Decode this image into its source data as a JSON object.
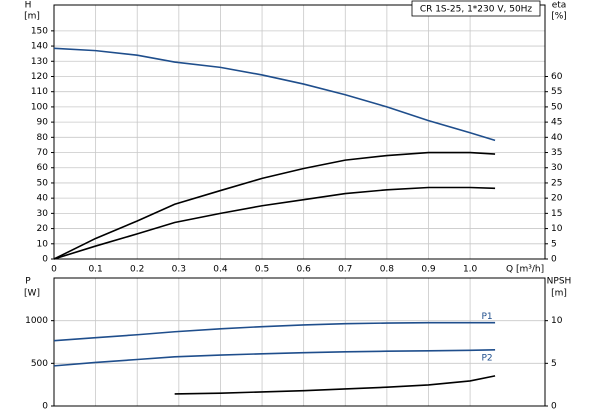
{
  "chart_data": [
    {
      "type": "line",
      "title": "CR 1S-25, 1*230 V, 50Hz",
      "y_label": "H",
      "y_unit": "[m]",
      "y2_label": "eta",
      "y2_unit": "[%]",
      "x_label": "Q [m³/h]",
      "x": [
        0,
        0.1,
        0.2,
        0.29,
        0.4,
        0.5,
        0.6,
        0.7,
        0.8,
        0.9,
        1.0,
        1.06
      ],
      "xlim": [
        0,
        1.18
      ],
      "xticks": [
        0,
        0.1,
        0.2,
        0.3,
        0.4,
        0.5,
        0.6,
        0.7,
        0.8,
        0.9,
        {
          "value": 1,
          "label": "1.0"
        }
      ],
      "ylim": [
        0,
        167
      ],
      "yticks": [
        0,
        10,
        20,
        30,
        40,
        50,
        60,
        70,
        80,
        90,
        100,
        110,
        120,
        130,
        140,
        150
      ],
      "y2lim": [
        0,
        83.5
      ],
      "y2ticks": [
        0,
        5,
        10,
        15,
        20,
        25,
        30,
        35,
        40,
        45,
        50,
        55,
        60
      ],
      "grid": true,
      "series": [
        {
          "color": "#1f4e8c",
          "values": [
            138.5,
            137,
            134,
            129.5,
            126,
            121,
            115,
            108,
            100,
            91,
            83,
            78
          ]
        },
        {
          "color": "#000000",
          "axis": "y2",
          "values": [
            0,
            6.75,
            12.5,
            18,
            22.5,
            26.5,
            29.75,
            32.5,
            34,
            35,
            35,
            34.5
          ]
        },
        {
          "color": "#000000",
          "axis": "y2",
          "values": [
            0,
            4.25,
            8.25,
            12,
            15,
            17.5,
            19.5,
            21.5,
            22.75,
            23.5,
            23.5,
            23.25
          ]
        }
      ]
    },
    {
      "type": "line",
      "y_label": "P",
      "y_unit": "[W]",
      "y2_label": "NPSH",
      "y2_unit": "[m]",
      "x": [
        0,
        0.1,
        0.2,
        0.29,
        0.4,
        0.5,
        0.6,
        0.7,
        0.8,
        0.9,
        1.0,
        1.06
      ],
      "xlim": [
        0,
        1.18
      ],
      "xticks": [
        0,
        0.1,
        0.2,
        0.3,
        0.4,
        0.5,
        0.6,
        0.7,
        0.8,
        0.9,
        1
      ],
      "ylim": [
        0,
        1500
      ],
      "yticks": [
        0,
        500,
        1000
      ],
      "y2lim": [
        0,
        15
      ],
      "y2ticks": [
        0,
        5,
        10
      ],
      "grid": true,
      "series": [
        {
          "name": "P1",
          "color": "#1f4e8c",
          "values": [
            765,
            800,
            835,
            870,
            905,
            930,
            950,
            965,
            972,
            976,
            976,
            976
          ]
        },
        {
          "name": "P2",
          "color": "#1f4e8c",
          "values": [
            470,
            510,
            545,
            576,
            597,
            612,
            625,
            635,
            642,
            647,
            653,
            659
          ]
        },
        {
          "color": "#000000",
          "axis": "y2",
          "values": [
            null,
            null,
            null,
            1.41,
            1.5,
            1.65,
            1.8,
            2.0,
            2.2,
            2.47,
            2.94,
            3.53
          ]
        }
      ]
    }
  ]
}
